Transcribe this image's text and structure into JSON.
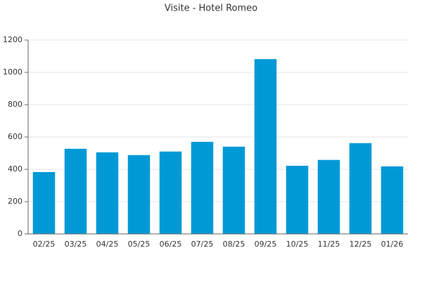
{
  "chart_data": {
    "type": "bar",
    "title": "Visite - Hotel Romeo",
    "categories": [
      "02/25",
      "03/25",
      "04/25",
      "05/25",
      "06/25",
      "07/25",
      "08/25",
      "09/25",
      "10/25",
      "11/25",
      "12/25",
      "01/26"
    ],
    "values": [
      383,
      527,
      505,
      488,
      510,
      570,
      540,
      1082,
      422,
      458,
      562,
      418
    ],
    "color": "#0099d6",
    "ylim": [
      0,
      1200
    ],
    "yticks": [
      0,
      200,
      400,
      600,
      800,
      1000,
      1200
    ],
    "grid": true
  }
}
